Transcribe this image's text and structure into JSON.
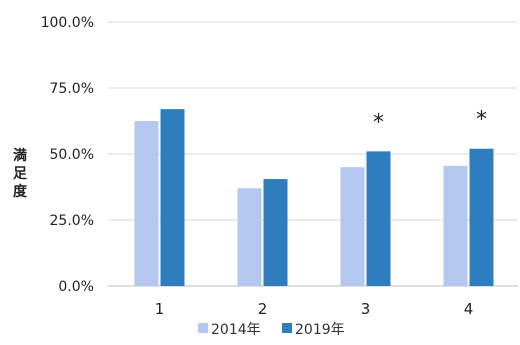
{
  "chart_data": {
    "type": "bar",
    "categories": [
      "1",
      "2",
      "3",
      "4"
    ],
    "series": [
      {
        "name": "2014年",
        "values": [
          62.5,
          37.0,
          45.0,
          45.5
        ],
        "color": "#b4c7ee"
      },
      {
        "name": "2019年",
        "values": [
          67.0,
          40.5,
          51.0,
          52.0
        ],
        "color": "#2e7dbf"
      }
    ],
    "ylabel": "満足度",
    "ylim": [
      0,
      100
    ],
    "yticks": [
      "0.0%",
      "25.0%",
      "50.0%",
      "75.0%",
      "100.0%"
    ],
    "ytick_values": [
      0,
      25,
      50,
      75,
      100
    ],
    "annotations": [
      "",
      "",
      "*",
      "*"
    ],
    "grid": true,
    "legend_position": "bottom"
  }
}
